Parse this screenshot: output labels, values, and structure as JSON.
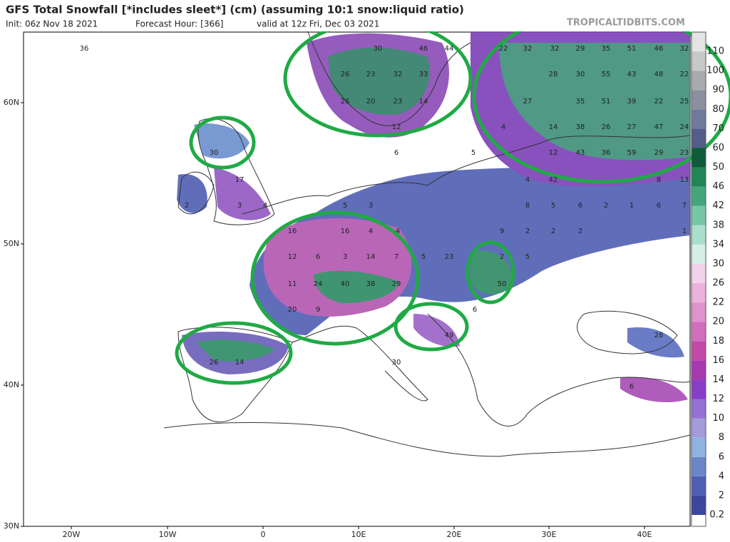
{
  "header": {
    "title": "GFS Total Snowfall [*includes sleet*] (cm) (assuming 10:1 snow:liquid ratio)",
    "init": "Init: 06z Nov 18 2021",
    "forecast_hour": "Forecast Hour: [366]",
    "valid": "valid at 12z Fri, Dec 03 2021",
    "watermark": "TROPICALTIDBITS.COM"
  },
  "axes": {
    "lat_labels": [
      "60N",
      "50N",
      "40N",
      "30N"
    ],
    "lon_labels": [
      "20W",
      "10W",
      "0",
      "10E",
      "20E",
      "30E",
      "40E"
    ]
  },
  "legend": {
    "levels": [
      0.2,
      2,
      4,
      6,
      8,
      10,
      12,
      14,
      16,
      18,
      20,
      22,
      26,
      30,
      34,
      38,
      42,
      46,
      50,
      60,
      70,
      80,
      90,
      100,
      110
    ],
    "colors": [
      "#3b469c",
      "#4f5fb3",
      "#6a86c9",
      "#8fb3e0",
      "#a49bdc",
      "#9470d2",
      "#8a3ec6",
      "#a63ab0",
      "#c24aa6",
      "#d26fbd",
      "#df92cc",
      "#eab2dc",
      "#f3d3ea",
      "#d7efe6",
      "#a9dfcb",
      "#75c7a6",
      "#44a67c",
      "#228557",
      "#0f5c3b",
      "#545c88",
      "#707a9c",
      "#8c8f9e",
      "#a9a9b0",
      "#c8c8c8",
      "#e4e4e4"
    ]
  },
  "map": {
    "labels": [
      36,
      30,
      46,
      44,
      26,
      23,
      32,
      33,
      26,
      20,
      23,
      14,
      12,
      6,
      22,
      32,
      32,
      29,
      35,
      51,
      46,
      32,
      28,
      30,
      55,
      43,
      48,
      22,
      27,
      35,
      51,
      39,
      22,
      25,
      4,
      14,
      38,
      26,
      27,
      47,
      24,
      5,
      12,
      43,
      36,
      59,
      29,
      23,
      4,
      42,
      8,
      13,
      30,
      17,
      2,
      3,
      4,
      5,
      3,
      8,
      5,
      6,
      2,
      1,
      6,
      7,
      16,
      16,
      4,
      4,
      9,
      2,
      2,
      2,
      1,
      12,
      6,
      3,
      14,
      7,
      5,
      23,
      2,
      5,
      11,
      24,
      40,
      38,
      29,
      50,
      20,
      9,
      6,
      49,
      28,
      26,
      14,
      30,
      6
    ]
  }
}
